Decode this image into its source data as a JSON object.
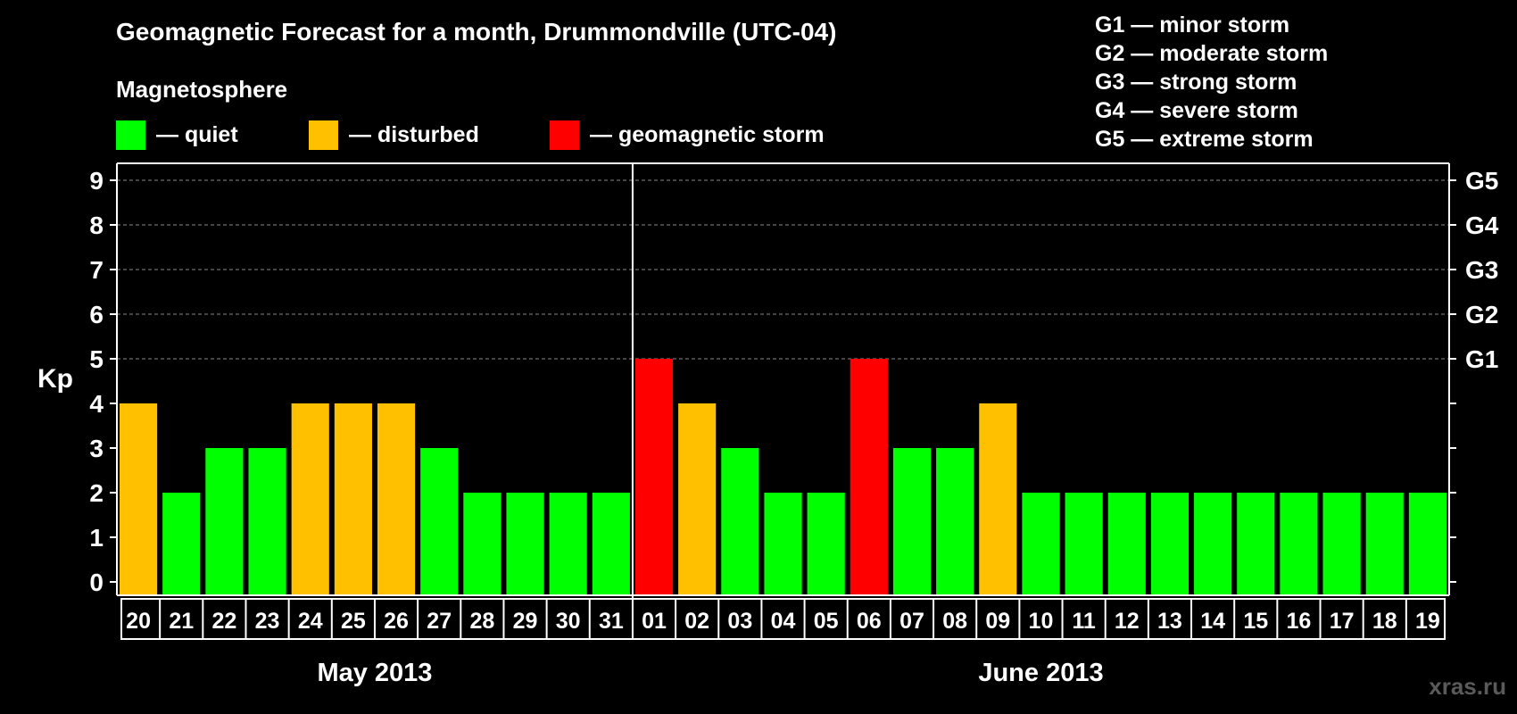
{
  "header": {
    "title": "Geomagnetic Forecast for a month, Drummondville (UTC-04)",
    "magnetosphere_label": "Magnetosphere"
  },
  "legend": [
    {
      "label": "— quiet",
      "color": "#00ff00"
    },
    {
      "label": "— disturbed",
      "color": "#ffc000"
    },
    {
      "label": "— geomagnetic storm",
      "color": "#ff0000"
    }
  ],
  "g_scale": [
    "G1 — minor storm",
    "G2 — moderate storm",
    "G3 — strong storm",
    "G4 — severe storm",
    "G5 — extreme storm"
  ],
  "watermark": "xras.ru",
  "chart_data": {
    "type": "bar",
    "ylabel": "Kp",
    "ylim": [
      0,
      9
    ],
    "yticks": [
      0,
      1,
      2,
      3,
      4,
      5,
      6,
      7,
      8,
      9
    ],
    "right_labels": [
      {
        "value": 5,
        "label": "G1"
      },
      {
        "value": 6,
        "label": "G2"
      },
      {
        "value": 7,
        "label": "G3"
      },
      {
        "value": 8,
        "label": "G4"
      },
      {
        "value": 9,
        "label": "G5"
      }
    ],
    "grid": true,
    "months": [
      {
        "label": "May 2013",
        "days": 12
      },
      {
        "label": "June 2013",
        "days": 19
      }
    ],
    "categories": [
      "20",
      "21",
      "22",
      "23",
      "24",
      "25",
      "26",
      "27",
      "28",
      "29",
      "30",
      "31",
      "01",
      "02",
      "03",
      "04",
      "05",
      "06",
      "07",
      "08",
      "09",
      "10",
      "11",
      "12",
      "13",
      "14",
      "15",
      "16",
      "17",
      "18",
      "19"
    ],
    "values": [
      4,
      2,
      3,
      3,
      4,
      4,
      4,
      3,
      2,
      2,
      2,
      2,
      5,
      4,
      3,
      2,
      2,
      5,
      3,
      3,
      4,
      2,
      2,
      2,
      2,
      2,
      2,
      2,
      2,
      2,
      2
    ],
    "status": [
      "disturbed",
      "quiet",
      "quiet",
      "quiet",
      "disturbed",
      "disturbed",
      "disturbed",
      "quiet",
      "quiet",
      "quiet",
      "quiet",
      "quiet",
      "storm",
      "disturbed",
      "quiet",
      "quiet",
      "quiet",
      "storm",
      "quiet",
      "quiet",
      "disturbed",
      "quiet",
      "quiet",
      "quiet",
      "quiet",
      "quiet",
      "quiet",
      "quiet",
      "quiet",
      "quiet",
      "quiet"
    ],
    "colors": {
      "quiet": "#00ff00",
      "disturbed": "#ffc000",
      "storm": "#ff0000"
    }
  }
}
